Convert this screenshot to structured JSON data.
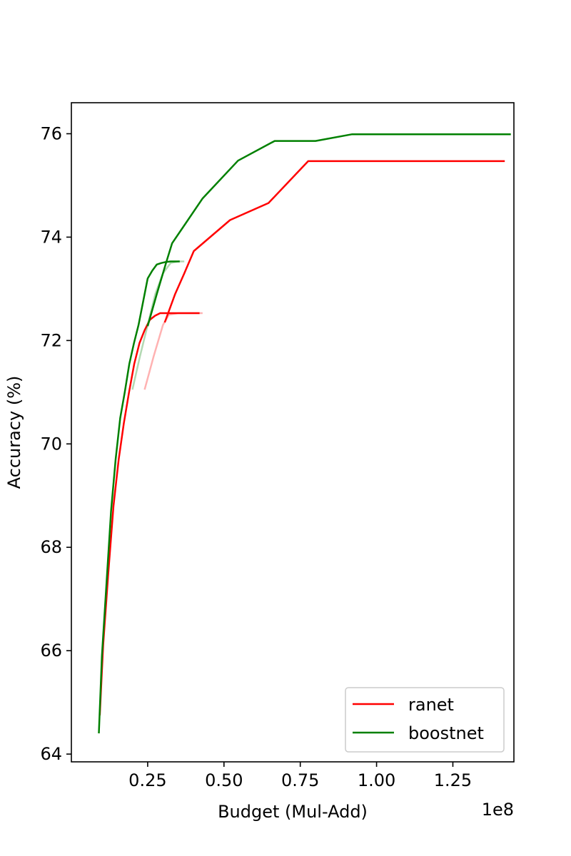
{
  "chart_data": {
    "type": "line",
    "title": "",
    "xlabel": "Budget (Mul-Add)",
    "ylabel": "Accuracy (%)",
    "x_offset_label": "1e8",
    "x_scale": 100000000,
    "xlim": [
      0.0,
      1.45
    ],
    "ylim": [
      63.85,
      76.6
    ],
    "x_ticks": [
      0.25,
      0.5,
      0.75,
      1.0,
      1.25
    ],
    "x_tick_labels": [
      "0.25",
      "0.50",
      "0.75",
      "1.00",
      "1.25"
    ],
    "y_ticks": [
      64,
      66,
      68,
      70,
      72,
      74,
      76
    ],
    "y_tick_labels": [
      "64",
      "66",
      "68",
      "70",
      "72",
      "74",
      "76"
    ],
    "legend_position": "lower-right",
    "grid": false,
    "series": [
      {
        "name": "ranet",
        "color": "#ff0000",
        "segments": [
          {
            "opacity": 1.0,
            "x": [
              0.093,
              0.104,
              0.121,
              0.138,
              0.155,
              0.172,
              0.189,
              0.206,
              0.223,
              0.24,
              0.257,
              0.274,
              0.291,
              0.307,
              0.327,
              0.35,
              0.373,
              0.394,
              0.41,
              0.42
            ],
            "y": [
              64.75,
              66.1,
              67.5,
              68.8,
              69.7,
              70.4,
              71.0,
              71.55,
              71.95,
              72.2,
              72.4,
              72.48,
              72.53,
              72.53,
              72.53,
              72.53,
              72.53,
              72.53,
              72.53,
              72.53
            ]
          },
          {
            "opacity": 0.3,
            "x": [
              0.24,
              0.27,
              0.3,
              0.32,
              0.35,
              0.38,
              0.41,
              0.43
            ],
            "y": [
              71.05,
              71.7,
              72.3,
              72.5,
              72.53,
              72.53,
              72.53,
              72.53
            ]
          },
          {
            "opacity": 1.0,
            "x": [
              0.306,
              0.34,
              0.37,
              0.401,
              0.52,
              0.646,
              0.776,
              0.85,
              0.95,
              1.05,
              1.15,
              1.25,
              1.35,
              1.42
            ],
            "y": [
              72.35,
              72.9,
              73.3,
              73.73,
              74.33,
              74.66,
              75.47,
              75.47,
              75.47,
              75.47,
              75.47,
              75.47,
              75.47,
              75.47
            ]
          }
        ]
      },
      {
        "name": "boostnet",
        "color": "#008000",
        "segments": [
          {
            "opacity": 1.0,
            "x": [
              0.09,
              0.1,
              0.115,
              0.13,
              0.145,
              0.16,
              0.175,
              0.19,
              0.205,
              0.22,
              0.235,
              0.25,
              0.265,
              0.28,
              0.295,
              0.31,
              0.325,
              0.34,
              0.355
            ],
            "y": [
              64.4,
              65.9,
              67.3,
              68.7,
              69.7,
              70.5,
              71.0,
              71.55,
              71.95,
              72.3,
              72.75,
              73.2,
              73.35,
              73.47,
              73.5,
              73.52,
              73.53,
              73.53,
              73.53
            ]
          },
          {
            "opacity": 0.3,
            "x": [
              0.2,
              0.225,
              0.25,
              0.275,
              0.3,
              0.325,
              0.35,
              0.37
            ],
            "y": [
              71.05,
              71.7,
              72.3,
              72.9,
              73.3,
              73.5,
              73.53,
              73.53
            ]
          },
          {
            "opacity": 1.0,
            "x": [
              0.25,
              0.28,
              0.31,
              0.33,
              0.43,
              0.546,
              0.666,
              0.8,
              0.92,
              1.0,
              1.1,
              1.2,
              1.3,
              1.4,
              1.44
            ],
            "y": [
              72.28,
              72.9,
              73.5,
              73.88,
              74.75,
              75.48,
              75.86,
              75.86,
              75.99,
              75.99,
              75.99,
              75.99,
              75.99,
              75.99,
              75.99
            ]
          }
        ]
      }
    ]
  }
}
